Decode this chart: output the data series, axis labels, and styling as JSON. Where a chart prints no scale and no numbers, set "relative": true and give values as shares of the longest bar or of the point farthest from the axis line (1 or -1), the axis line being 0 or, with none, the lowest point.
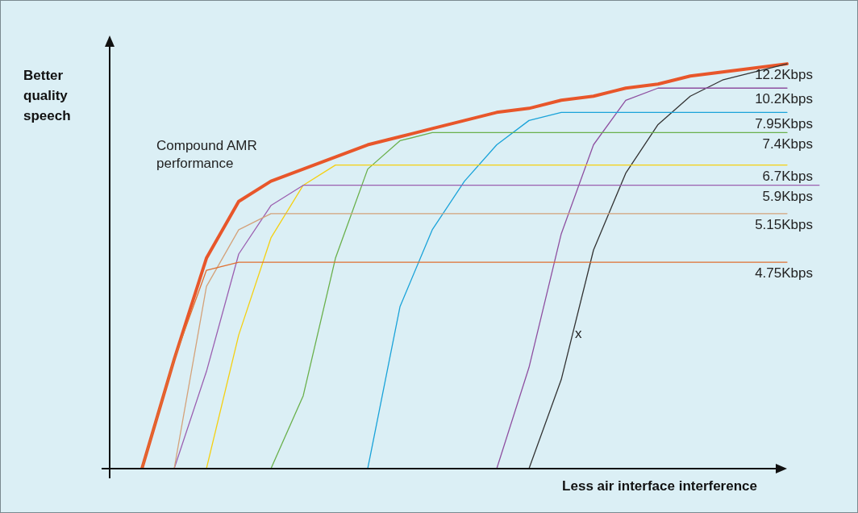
{
  "chart_data": {
    "type": "line",
    "relative": true,
    "xlabel": "Less air interface interference",
    "ylabel": "Better quality speech",
    "line_style": "solid",
    "annotations": [
      "Compound AMR performance",
      "x"
    ],
    "categories": [
      null,
      null,
      null,
      null,
      null,
      null,
      null,
      null,
      null,
      null,
      null,
      null,
      null,
      null,
      null,
      null,
      null,
      null,
      null,
      null,
      null,
      null
    ],
    "series": [
      {
        "color": "#e8562a",
        "values": [
          0,
          0.27,
          0.52,
          0.66,
          0.71,
          0.74,
          0.77,
          0.8,
          0.82,
          0.84,
          0.86,
          0.88,
          0.89,
          0.91,
          0.92,
          0.94,
          0.95,
          0.97,
          0.98,
          0.99,
          1.0,
          null
        ]
      },
      {
        "name": "12.2Kbps",
        "color": "#333333",
        "values": [
          null,
          null,
          null,
          null,
          null,
          null,
          null,
          null,
          null,
          null,
          null,
          null,
          0,
          0.22,
          0.54,
          0.73,
          0.85,
          0.92,
          0.96,
          0.98,
          1.0,
          null
        ]
      },
      {
        "name": "10.2Kbps",
        "color": "#8e4fa0",
        "values": [
          null,
          null,
          null,
          null,
          null,
          null,
          null,
          null,
          null,
          null,
          null,
          0,
          0.25,
          0.58,
          0.8,
          0.91,
          0.94,
          0.94,
          0.94,
          0.94,
          0.94,
          null
        ]
      },
      {
        "name": "7.95Kbps",
        "color": "#1aa3d9",
        "values": [
          null,
          null,
          null,
          null,
          null,
          null,
          null,
          0,
          0.4,
          0.59,
          0.71,
          0.8,
          0.86,
          0.88,
          0.88,
          0.88,
          0.88,
          0.88,
          0.88,
          0.88,
          0.88,
          null
        ]
      },
      {
        "name": "7.4Kbps",
        "color": "#6ab04c",
        "values": [
          null,
          null,
          null,
          null,
          0,
          0.18,
          0.52,
          0.74,
          0.81,
          0.83,
          0.83,
          0.83,
          0.83,
          0.83,
          0.83,
          0.83,
          0.83,
          0.83,
          0.83,
          0.83,
          0.83,
          null
        ]
      },
      {
        "name": "6.7Kbps",
        "color": "#f5d010",
        "values": [
          null,
          null,
          0,
          0.33,
          0.57,
          0.7,
          0.75,
          0.75,
          0.75,
          0.75,
          0.75,
          0.75,
          0.75,
          0.75,
          0.75,
          0.75,
          0.75,
          0.75,
          0.75,
          0.75,
          0.75,
          null
        ]
      },
      {
        "name": "5.9Kbps",
        "color": "#9b5fb0",
        "values": [
          null,
          0,
          0.24,
          0.53,
          0.65,
          0.7,
          0.7,
          0.7,
          0.7,
          0.7,
          0.7,
          0.7,
          0.7,
          0.7,
          0.7,
          0.7,
          0.7,
          0.7,
          0.7,
          0.7,
          0.7,
          0.7
        ]
      },
      {
        "name": "5.15Kbps",
        "color": "#d4a27a",
        "values": [
          null,
          0,
          0.45,
          0.59,
          0.63,
          0.63,
          0.63,
          0.63,
          0.63,
          0.63,
          0.63,
          0.63,
          0.63,
          0.63,
          0.63,
          0.63,
          0.63,
          0.63,
          0.63,
          0.63,
          0.63,
          null
        ]
      },
      {
        "name": "4.75Kbps",
        "color": "#e07030",
        "values": [
          0,
          0.27,
          0.49,
          0.51,
          0.51,
          0.51,
          0.51,
          0.51,
          0.51,
          0.51,
          0.51,
          0.51,
          0.51,
          0.51,
          0.51,
          0.51,
          0.51,
          0.51,
          0.51,
          0.51,
          0.51,
          null
        ]
      }
    ]
  }
}
